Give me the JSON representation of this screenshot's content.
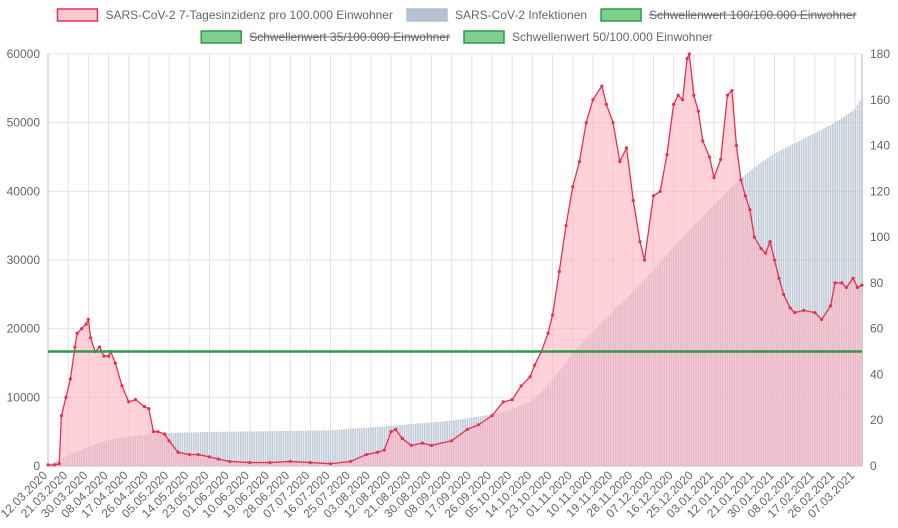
{
  "chart_data": {
    "type": "bar+line",
    "legend": {
      "placement": "top",
      "items": [
        {
          "label": "SARS-CoV-2 7-Tagesinzidenz pro 100.000 Einwohner",
          "fill": "#ffc9d1",
          "stroke": "#e8314f",
          "strikethrough": false
        },
        {
          "label": "SARS-CoV-2 Infektionen",
          "fill": "#b5c0d1",
          "stroke": "#b5c0d1",
          "strikethrough": false
        },
        {
          "label": "Schwellenwert 100/100.000 Einwohner",
          "fill": "#7fcf8f",
          "stroke": "#2e9a45",
          "strikethrough": true
        },
        {
          "label": "Schwellenwert 35/100.000 Einwohner",
          "fill": "#7fcf8f",
          "stroke": "#2e9a45",
          "strikethrough": true
        },
        {
          "label": "Schwellenwert 50/100.000 Einwohner",
          "fill": "#7fcf8f",
          "stroke": "#2e9a45",
          "strikethrough": false
        }
      ]
    },
    "x_axis": {
      "start_date": "12.03.2020",
      "end_date": "10.03.2021",
      "tick_labels": [
        "12.03.2020",
        "21.03.2020",
        "30.03.2020",
        "08.04.2020",
        "17.04.2020",
        "26.04.2020",
        "05.05.2020",
        "14.05.2020",
        "23.05.2020",
        "01.06.2020",
        "10.06.2020",
        "19.06.2020",
        "28.06.2020",
        "07.07.2020",
        "16.07.2020",
        "25.07.2020",
        "03.08.2020",
        "12.08.2020",
        "21.08.2020",
        "30.08.2020",
        "08.09.2020",
        "17.09.2020",
        "26.09.2020",
        "05.10.2020",
        "14.10.2020",
        "23.10.2020",
        "01.11.2020",
        "10.11.2020",
        "19.11.2020",
        "28.11.2020",
        "07.12.2020",
        "16.12.2020",
        "25.12.2020",
        "03.01.2021",
        "12.01.2021",
        "21.01.2021",
        "30.01.2021",
        "08.02.2021",
        "17.02.2021",
        "26.02.2021",
        "07.03.2021"
      ]
    },
    "y_left": {
      "min": 0,
      "max": 60000,
      "ticks": [
        "0",
        "10000",
        "20000",
        "30000",
        "40000",
        "50000",
        "60000"
      ]
    },
    "y_right": {
      "min": 0,
      "max": 180,
      "ticks": [
        "0",
        "20",
        "40",
        "60",
        "80",
        "100",
        "120",
        "140",
        "160",
        "180"
      ]
    },
    "grid": true,
    "infections_cumulative": {
      "name": "SARS-CoV-2 Infektionen",
      "axis": "left",
      "points": [
        [
          "12.03.2020",
          200
        ],
        [
          "21.03.2020",
          1500
        ],
        [
          "30.03.2020",
          2800
        ],
        [
          "08.04.2020",
          3800
        ],
        [
          "17.04.2020",
          4300
        ],
        [
          "26.04.2020",
          4600
        ],
        [
          "05.05.2020",
          4800
        ],
        [
          "14.05.2020",
          4900
        ],
        [
          "01.06.2020",
          5000
        ],
        [
          "28.06.2020",
          5100
        ],
        [
          "16.07.2020",
          5200
        ],
        [
          "03.08.2020",
          5600
        ],
        [
          "21.08.2020",
          6100
        ],
        [
          "08.09.2020",
          6600
        ],
        [
          "26.09.2020",
          7500
        ],
        [
          "05.10.2020",
          8300
        ],
        [
          "14.10.2020",
          9500
        ],
        [
          "23.10.2020",
          12500
        ],
        [
          "01.11.2020",
          16500
        ],
        [
          "10.11.2020",
          19500
        ],
        [
          "19.11.2020",
          22500
        ],
        [
          "28.11.2020",
          25500
        ],
        [
          "07.12.2020",
          28500
        ],
        [
          "16.12.2020",
          32000
        ],
        [
          "25.12.2020",
          35000
        ],
        [
          "03.01.2021",
          38000
        ],
        [
          "12.01.2021",
          41000
        ],
        [
          "21.01.2021",
          43500
        ],
        [
          "30.01.2021",
          45500
        ],
        [
          "08.02.2021",
          47000
        ],
        [
          "17.02.2021",
          48500
        ],
        [
          "26.02.2021",
          50000
        ],
        [
          "07.03.2021",
          52000
        ],
        [
          "10.03.2021",
          53800
        ]
      ]
    },
    "incidence_7day": {
      "name": "SARS-CoV-2 7-Tagesinzidenz pro 100.000 Einwohner",
      "axis": "right",
      "points": [
        [
          "12.03.2020",
          0.5
        ],
        [
          "15.03.2020",
          0.5
        ],
        [
          "17.03.2020",
          1
        ],
        [
          "18.03.2020",
          22
        ],
        [
          "20.03.2020",
          30
        ],
        [
          "22.03.2020",
          38
        ],
        [
          "24.03.2020",
          52
        ],
        [
          "25.03.2020",
          58
        ],
        [
          "27.03.2020",
          60
        ],
        [
          "29.03.2020",
          62
        ],
        [
          "30.03.2020",
          64
        ],
        [
          "31.03.2020",
          56
        ],
        [
          "02.04.2020",
          50
        ],
        [
          "04.04.2020",
          52
        ],
        [
          "06.04.2020",
          48
        ],
        [
          "08.04.2020",
          48
        ],
        [
          "09.04.2020",
          50
        ],
        [
          "11.04.2020",
          45
        ],
        [
          "14.04.2020",
          35
        ],
        [
          "17.04.2020",
          28
        ],
        [
          "20.04.2020",
          29
        ],
        [
          "24.04.2020",
          26
        ],
        [
          "26.04.2020",
          25
        ],
        [
          "28.04.2020",
          15
        ],
        [
          "30.04.2020",
          15
        ],
        [
          "03.05.2020",
          14
        ],
        [
          "05.05.2020",
          11
        ],
        [
          "09.05.2020",
          6
        ],
        [
          "14.05.2020",
          5
        ],
        [
          "18.05.2020",
          5
        ],
        [
          "23.05.2020",
          4
        ],
        [
          "27.05.2020",
          3
        ],
        [
          "01.06.2020",
          2
        ],
        [
          "10.06.2020",
          1.5
        ],
        [
          "19.06.2020",
          1.5
        ],
        [
          "28.06.2020",
          2
        ],
        [
          "07.07.2020",
          1.5
        ],
        [
          "16.07.2020",
          1
        ],
        [
          "25.07.2020",
          2
        ],
        [
          "01.08.2020",
          5
        ],
        [
          "06.08.2020",
          6
        ],
        [
          "09.08.2020",
          7
        ],
        [
          "12.08.2020",
          15
        ],
        [
          "14.08.2020",
          16
        ],
        [
          "17.08.2020",
          12
        ],
        [
          "21.08.2020",
          9
        ],
        [
          "26.08.2020",
          10
        ],
        [
          "30.08.2020",
          9
        ],
        [
          "08.09.2020",
          11
        ],
        [
          "15.09.2020",
          16
        ],
        [
          "20.09.2020",
          18
        ],
        [
          "26.09.2020",
          22
        ],
        [
          "01.10.2020",
          28
        ],
        [
          "05.10.2020",
          29
        ],
        [
          "09.10.2020",
          35
        ],
        [
          "13.10.2020",
          39
        ],
        [
          "15.10.2020",
          44
        ],
        [
          "18.10.2020",
          50
        ],
        [
          "21.10.2020",
          58
        ],
        [
          "23.10.2020",
          66
        ],
        [
          "26.10.2020",
          85
        ],
        [
          "29.10.2020",
          105
        ],
        [
          "01.11.2020",
          122
        ],
        [
          "04.11.2020",
          133
        ],
        [
          "07.11.2020",
          150
        ],
        [
          "10.11.2020",
          160
        ],
        [
          "14.11.2020",
          166
        ],
        [
          "16.11.2020",
          158
        ],
        [
          "19.11.2020",
          150
        ],
        [
          "22.11.2020",
          133
        ],
        [
          "25.11.2020",
          139
        ],
        [
          "28.11.2020",
          116
        ],
        [
          "01.12.2020",
          98
        ],
        [
          "03.12.2020",
          90
        ],
        [
          "07.12.2020",
          118
        ],
        [
          "10.12.2020",
          120
        ],
        [
          "13.12.2020",
          136
        ],
        [
          "16.12.2020",
          158
        ],
        [
          "18.12.2020",
          162
        ],
        [
          "20.12.2020",
          160
        ],
        [
          "22.12.2020",
          178
        ],
        [
          "23.12.2020",
          180
        ],
        [
          "25.12.2020",
          162
        ],
        [
          "27.12.2020",
          155
        ],
        [
          "29.12.2020",
          142
        ],
        [
          "01.01.2021",
          135
        ],
        [
          "03.01.2021",
          126
        ],
        [
          "06.01.2021",
          134
        ],
        [
          "09.01.2021",
          162
        ],
        [
          "11.01.2021",
          164
        ],
        [
          "13.01.2021",
          140
        ],
        [
          "15.01.2021",
          125
        ],
        [
          "17.01.2021",
          118
        ],
        [
          "19.01.2021",
          112
        ],
        [
          "21.01.2021",
          100
        ],
        [
          "24.01.2021",
          95
        ],
        [
          "26.01.2021",
          93
        ],
        [
          "28.01.2021",
          98
        ],
        [
          "30.01.2021",
          90
        ],
        [
          "01.02.2021",
          82
        ],
        [
          "03.02.2021",
          75
        ],
        [
          "06.02.2021",
          69
        ],
        [
          "08.02.2021",
          67
        ],
        [
          "12.02.2021",
          68
        ],
        [
          "17.02.2021",
          67
        ],
        [
          "20.02.2021",
          64
        ],
        [
          "24.02.2021",
          70
        ],
        [
          "26.02.2021",
          80
        ],
        [
          "01.03.2021",
          80
        ],
        [
          "03.03.2021",
          78
        ],
        [
          "06.03.2021",
          82
        ],
        [
          "08.03.2021",
          78
        ],
        [
          "10.03.2021",
          79
        ]
      ]
    },
    "threshold_50": {
      "name": "Schwellenwert 50/100.000 Einwohner",
      "axis": "right",
      "value": 50
    }
  }
}
